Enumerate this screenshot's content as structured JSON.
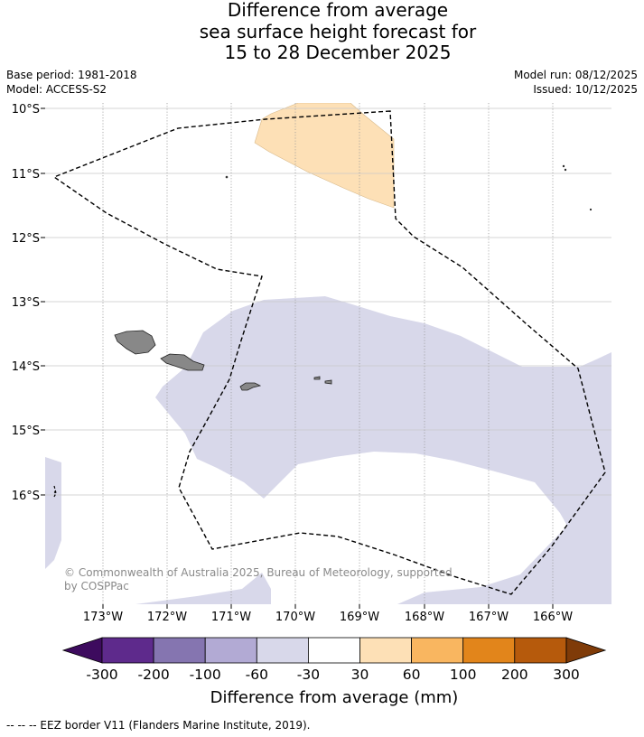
{
  "title_lines": [
    "Difference from average",
    "sea surface height forecast for",
    "15 to 28 December 2025"
  ],
  "meta": {
    "base_period": "Base period: 1981-2018",
    "model": "Model: ACCESS-S2",
    "model_run": "Model run: 08/12/2025",
    "issued": "Issued: 10/12/2025"
  },
  "map": {
    "lat_labels": [
      "10°S",
      "11°S",
      "12°S",
      "13°S",
      "14°S",
      "15°S",
      "16°S"
    ],
    "lon_labels": [
      "173°W",
      "172°W",
      "171°W",
      "170°W",
      "169°W",
      "168°W",
      "167°W",
      "166°W"
    ],
    "copyright_lines": [
      "© Commonwealth of Australia 2025, Bureau of Meteorology, supported",
      "by COSPPac"
    ],
    "region_colors": {
      "anomaly_neg_30_60": "#d8d8ea",
      "anomaly_pos_30_60": "#fde0b6",
      "land": "#888888",
      "eez_border": "#000000"
    }
  },
  "colorbar": {
    "tick_labels": [
      "-300",
      "-200",
      "-100",
      "-60",
      "-30",
      "30",
      "60",
      "100",
      "200",
      "300"
    ],
    "colors": [
      "#3d0b5e",
      "#5e2a8c",
      "#8575b0",
      "#b2aad4",
      "#d8d8ea",
      "#ffffff",
      "#fde0b6",
      "#f9b660",
      "#e2851b",
      "#b65a0c",
      "#7f3b08"
    ],
    "title": "Difference from average (mm)"
  },
  "footer": {
    "legend_text": "--  --  -- EEZ border V11 (Flanders Marine Institute, 2019)."
  }
}
